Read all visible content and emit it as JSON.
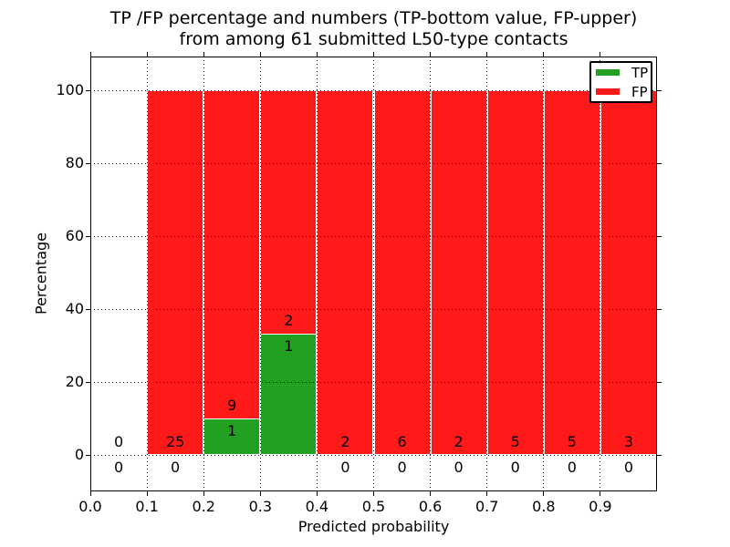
{
  "figure": {
    "background": "#ffffff"
  },
  "chart_data": {
    "type": "bar",
    "stacked": true,
    "title": "TP /FP percentage and numbers (TP-bottom value, FP-upper)\nfrom among 61 submitted L50-type contacts",
    "title_lines": [
      "TP /FP percentage and numbers (TP-bottom value, FP-upper)",
      "from among 61 submitted L50-type contacts"
    ],
    "total_submitted_contacts": 61,
    "xlabel": "Predicted probability",
    "ylabel": "Percentage",
    "xlim": [
      0.0,
      1.0
    ],
    "ylim": [
      -10,
      110
    ],
    "grid": true,
    "xticks": [
      {
        "v": 0.0,
        "label": "0.0"
      },
      {
        "v": 0.1,
        "label": "0.1"
      },
      {
        "v": 0.2,
        "label": "0.2"
      },
      {
        "v": 0.3,
        "label": "0.3"
      },
      {
        "v": 0.4,
        "label": "0.4"
      },
      {
        "v": 0.5,
        "label": "0.5"
      },
      {
        "v": 0.6,
        "label": "0.6"
      },
      {
        "v": 0.7,
        "label": "0.7"
      },
      {
        "v": 0.8,
        "label": "0.8"
      },
      {
        "v": 0.9,
        "label": "0.9"
      }
    ],
    "yticks": [
      {
        "v": 0,
        "label": "0"
      },
      {
        "v": 20,
        "label": "20"
      },
      {
        "v": 40,
        "label": "40"
      },
      {
        "v": 60,
        "label": "60"
      },
      {
        "v": 80,
        "label": "80"
      },
      {
        "v": 100,
        "label": "100"
      }
    ],
    "legend": {
      "position": "upper right",
      "entries": [
        {
          "label": "TP",
          "color": "#22a022"
        },
        {
          "label": "FP",
          "color": "#ff1a1a"
        }
      ]
    },
    "colors": {
      "tp": "#22a022",
      "fp": "#ff1a1a",
      "grid": "#000000",
      "background": "#ffffff"
    },
    "bins": [
      {
        "x_range": [
          0.0,
          0.1
        ],
        "tp_count": 0,
        "fp_count": 0,
        "tp_pct": 0.0,
        "fp_pct": 0.0
      },
      {
        "x_range": [
          0.1,
          0.2
        ],
        "tp_count": 0,
        "fp_count": 25,
        "tp_pct": 0.0,
        "fp_pct": 100.0
      },
      {
        "x_range": [
          0.2,
          0.3
        ],
        "tp_count": 1,
        "fp_count": 9,
        "tp_pct": 10.0,
        "fp_pct": 90.0
      },
      {
        "x_range": [
          0.3,
          0.4
        ],
        "tp_count": 1,
        "fp_count": 2,
        "tp_pct": 33.3,
        "fp_pct": 66.7
      },
      {
        "x_range": [
          0.4,
          0.5
        ],
        "tp_count": 0,
        "fp_count": 2,
        "tp_pct": 0.0,
        "fp_pct": 100.0
      },
      {
        "x_range": [
          0.5,
          0.6
        ],
        "tp_count": 0,
        "fp_count": 6,
        "tp_pct": 0.0,
        "fp_pct": 100.0
      },
      {
        "x_range": [
          0.6,
          0.7
        ],
        "tp_count": 0,
        "fp_count": 2,
        "tp_pct": 0.0,
        "fp_pct": 100.0
      },
      {
        "x_range": [
          0.7,
          0.8
        ],
        "tp_count": 0,
        "fp_count": 5,
        "tp_pct": 0.0,
        "fp_pct": 100.0
      },
      {
        "x_range": [
          0.8,
          0.9
        ],
        "tp_count": 0,
        "fp_count": 5,
        "tp_pct": 0.0,
        "fp_pct": 100.0
      },
      {
        "x_range": [
          0.9,
          1.0
        ],
        "tp_count": 0,
        "fp_count": 3,
        "tp_pct": 0.0,
        "fp_pct": 100.0
      }
    ]
  }
}
